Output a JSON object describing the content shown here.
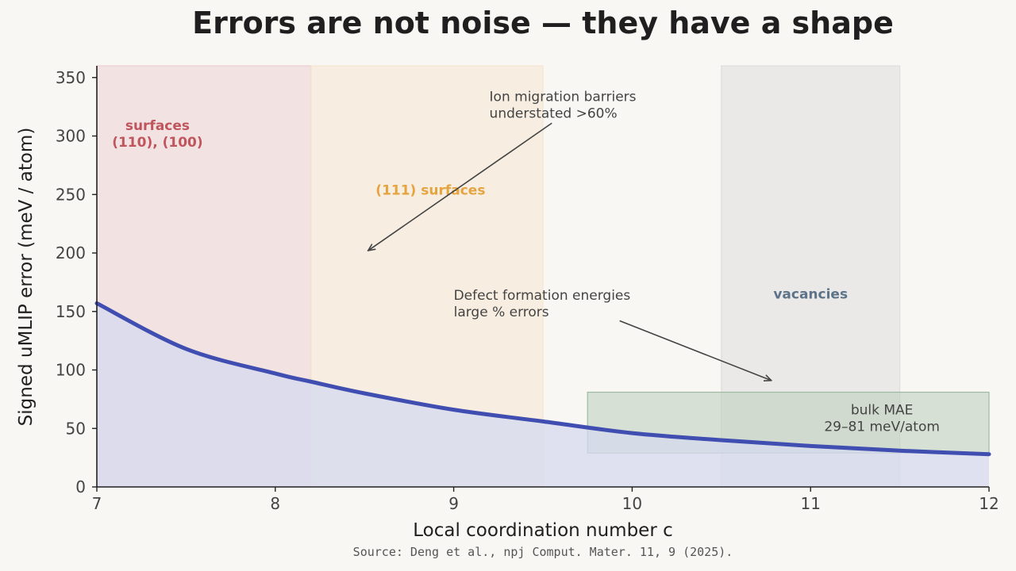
{
  "chart_data": {
    "type": "area",
    "title": "Errors are not noise — they have a shape",
    "xlabel": "Local coordination number  c",
    "ylabel": "Signed uMLIP error  (meV / atom)",
    "xlim": [
      7,
      12
    ],
    "ylim": [
      0,
      360
    ],
    "x_ticks": [
      7,
      8,
      9,
      10,
      11,
      12
    ],
    "y_ticks": [
      0,
      50,
      100,
      150,
      200,
      250,
      300,
      350
    ],
    "grid": false,
    "series": [
      {
        "x": [
          7.0,
          7.5,
          8.0,
          8.2,
          8.5,
          9.0,
          9.5,
          10.0,
          10.5,
          11.0,
          11.5,
          12.0
        ],
        "values": [
          157,
          118,
          97,
          90,
          80,
          66,
          56,
          46,
          40,
          35,
          31,
          28
        ],
        "color": "#3f4eb0",
        "fill": "#d6d9ef"
      }
    ],
    "regions": [
      {
        "x0": 7.0,
        "x1": 8.2,
        "label": "surfaces\n(110), (100)",
        "color": "#e9c9cf",
        "label_color": "#c0555e"
      },
      {
        "x0": 8.2,
        "x1": 9.5,
        "label": "(111) surfaces",
        "color": "#f5e3cc",
        "label_color": "#e5a43f"
      },
      {
        "x0": 10.5,
        "x1": 11.5,
        "label": "vacancies",
        "color": "#dcdcdc",
        "label_color": "#5d7389"
      }
    ],
    "band": {
      "x0": 9.75,
      "x1": 12.0,
      "y0": 29,
      "y1": 81,
      "label": "bulk MAE\n29–81 meV/atom",
      "color": "#b9ceb9",
      "label_color": "#5b8b6e"
    },
    "annotations": [
      {
        "text": "Ion migration barriers\nunderstated >60%",
        "text_x": 9.2,
        "text_y": 330,
        "from_x": 9.55,
        "from_y": 311,
        "to_x": 8.52,
        "to_y": 202
      },
      {
        "text": "Defect formation energies\nlarge % errors",
        "text_x": 9.0,
        "text_y": 160,
        "from_x": 9.93,
        "from_y": 142,
        "to_x": 10.78,
        "to_y": 91
      }
    ],
    "source": "Source: Deng et al., npj Comput. Mater. 11, 9 (2025)."
  }
}
